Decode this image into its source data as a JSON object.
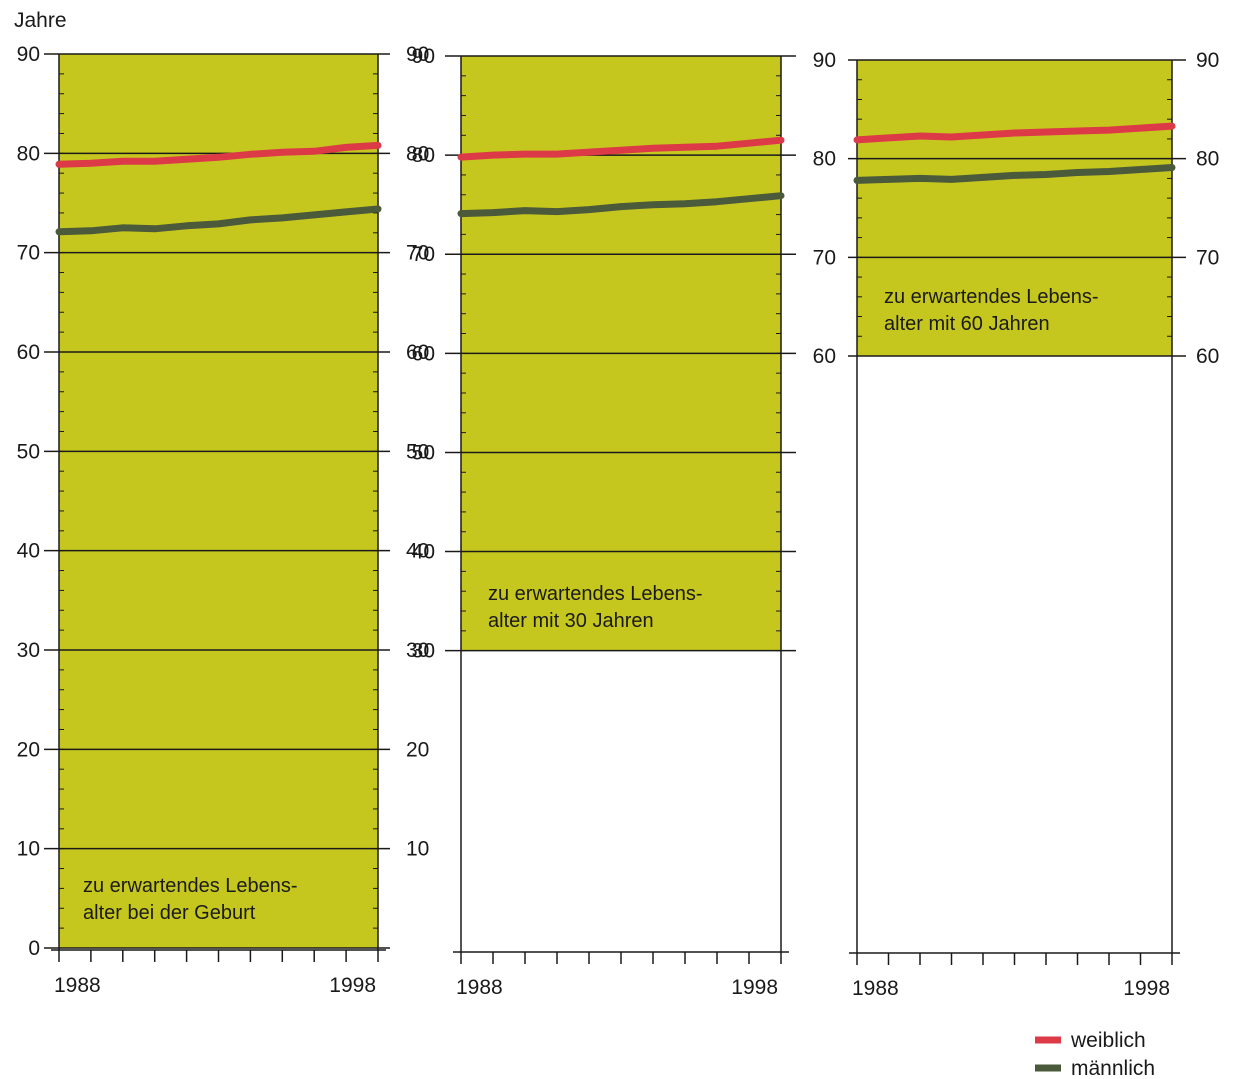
{
  "colors": {
    "panel_fill": "#c6c71e",
    "weiblich": "#dd3a48",
    "maennlich": "#4a5a3a",
    "grid": "#1a1a1a"
  },
  "y_unit_label": "Jahre",
  "legend": [
    {
      "key": "weiblich",
      "label": "weiblich"
    },
    {
      "key": "maennlich",
      "label": "männlich"
    }
  ],
  "chart_data": [
    {
      "type": "line",
      "annotation": [
        "zu erwartendes Lebens-",
        "alter bei der Geburt"
      ],
      "x": [
        1988,
        1989,
        1990,
        1991,
        1992,
        1993,
        1994,
        1995,
        1996,
        1997,
        1998
      ],
      "x_tick_labels": [
        "1988",
        "1998"
      ],
      "ylim": [
        0,
        90
      ],
      "y_ticks": [
        0,
        10,
        20,
        30,
        40,
        50,
        60,
        70,
        80,
        90
      ],
      "y_labels_right": [
        10,
        20,
        30,
        40,
        50,
        60,
        70,
        80,
        90
      ],
      "series": [
        {
          "name": "weiblich",
          "values": [
            78.9,
            79.0,
            79.2,
            79.2,
            79.4,
            79.6,
            79.9,
            80.1,
            80.2,
            80.6,
            80.8
          ]
        },
        {
          "name": "männlich",
          "values": [
            72.1,
            72.2,
            72.5,
            72.4,
            72.7,
            72.9,
            73.3,
            73.5,
            73.8,
            74.1,
            74.4
          ]
        }
      ]
    },
    {
      "type": "line",
      "annotation": [
        "zu erwartendes Lebens-",
        "alter mit 30 Jahren"
      ],
      "x": [
        1988,
        1989,
        1990,
        1991,
        1992,
        1993,
        1994,
        1995,
        1996,
        1997,
        1998
      ],
      "x_tick_labels": [
        "1988",
        "1998"
      ],
      "ylim": [
        30,
        90
      ],
      "y_ticks": [
        30,
        40,
        50,
        60,
        70,
        80,
        90
      ],
      "series": [
        {
          "name": "weiblich",
          "values": [
            79.8,
            80.0,
            80.1,
            80.1,
            80.3,
            80.5,
            80.7,
            80.8,
            80.9,
            81.2,
            81.5
          ]
        },
        {
          "name": "männlich",
          "values": [
            74.1,
            74.2,
            74.4,
            74.3,
            74.5,
            74.8,
            75.0,
            75.1,
            75.3,
            75.6,
            75.9
          ]
        }
      ]
    },
    {
      "type": "line",
      "annotation": [
        "zu erwartendes Lebens-",
        "alter mit 60 Jahren"
      ],
      "x": [
        1988,
        1989,
        1990,
        1991,
        1992,
        1993,
        1994,
        1995,
        1996,
        1997,
        1998
      ],
      "x_tick_labels": [
        "1988",
        "1998"
      ],
      "ylim": [
        60,
        90
      ],
      "y_ticks": [
        60,
        70,
        80,
        90
      ],
      "y_labels_right": [
        60,
        70,
        80,
        90
      ],
      "series": [
        {
          "name": "weiblich",
          "values": [
            81.9,
            82.1,
            82.3,
            82.2,
            82.4,
            82.6,
            82.7,
            82.8,
            82.9,
            83.1,
            83.3
          ]
        },
        {
          "name": "männlich",
          "values": [
            77.8,
            77.9,
            78.0,
            77.9,
            78.1,
            78.3,
            78.4,
            78.6,
            78.7,
            78.9,
            79.1
          ]
        }
      ]
    }
  ]
}
